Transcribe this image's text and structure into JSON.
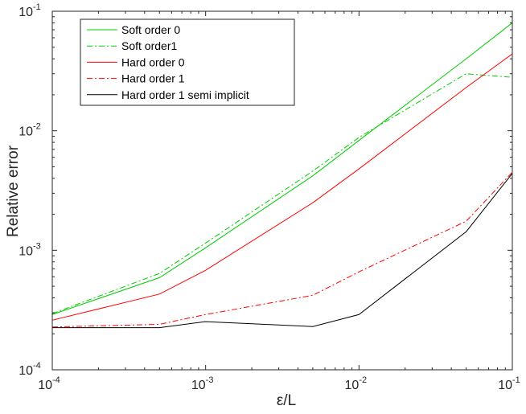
{
  "chart_data": {
    "type": "line",
    "xscale": "log",
    "yscale": "log",
    "xlim": [
      0.0001,
      0.1
    ],
    "ylim": [
      0.0001,
      0.1
    ],
    "xlabel": "ε/L",
    "ylabel": "Relative error",
    "xticks": [
      {
        "base": "10",
        "exp": "-4",
        "value": 0.0001
      },
      {
        "base": "10",
        "exp": "-3",
        "value": 0.001
      },
      {
        "base": "10",
        "exp": "-2",
        "value": 0.01
      },
      {
        "base": "10",
        "exp": "-1",
        "value": 0.1
      }
    ],
    "yticks": [
      {
        "base": "10",
        "exp": "-4",
        "value": 0.0001
      },
      {
        "base": "10",
        "exp": "-3",
        "value": 0.001
      },
      {
        "base": "10",
        "exp": "-2",
        "value": 0.01
      },
      {
        "base": "10",
        "exp": "-1",
        "value": 0.1
      }
    ],
    "grid": false,
    "legend_position": "top-left",
    "x": [
      0.0001,
      0.0005,
      0.001,
      0.005,
      0.01,
      0.05,
      0.1
    ],
    "series": [
      {
        "name": "Soft order 0",
        "color": "#00cc00",
        "dash": "solid",
        "values": [
          0.00029,
          0.00059,
          0.00105,
          0.0042,
          0.0083,
          0.04,
          0.08
        ]
      },
      {
        "name": "Soft order1",
        "color": "#00cc00",
        "dash": "dashdot",
        "values": [
          0.000295,
          0.00064,
          0.00115,
          0.0046,
          0.0088,
          0.03,
          0.028
        ]
      },
      {
        "name": "Hard order 0",
        "color": "#ff0000",
        "dash": "solid",
        "values": [
          0.00026,
          0.00043,
          0.00068,
          0.0025,
          0.0048,
          0.023,
          0.044
        ]
      },
      {
        "name": "Hard order 1",
        "color": "#ff0000",
        "dash": "dashdot",
        "values": [
          0.000228,
          0.00024,
          0.00029,
          0.00042,
          0.00066,
          0.00175,
          0.0045
        ]
      },
      {
        "name": "Hard order 1 semi implicit",
        "color": "#000000",
        "dash": "solid",
        "values": [
          0.000225,
          0.000225,
          0.000253,
          0.00023,
          0.00029,
          0.00143,
          0.0044
        ]
      }
    ]
  }
}
